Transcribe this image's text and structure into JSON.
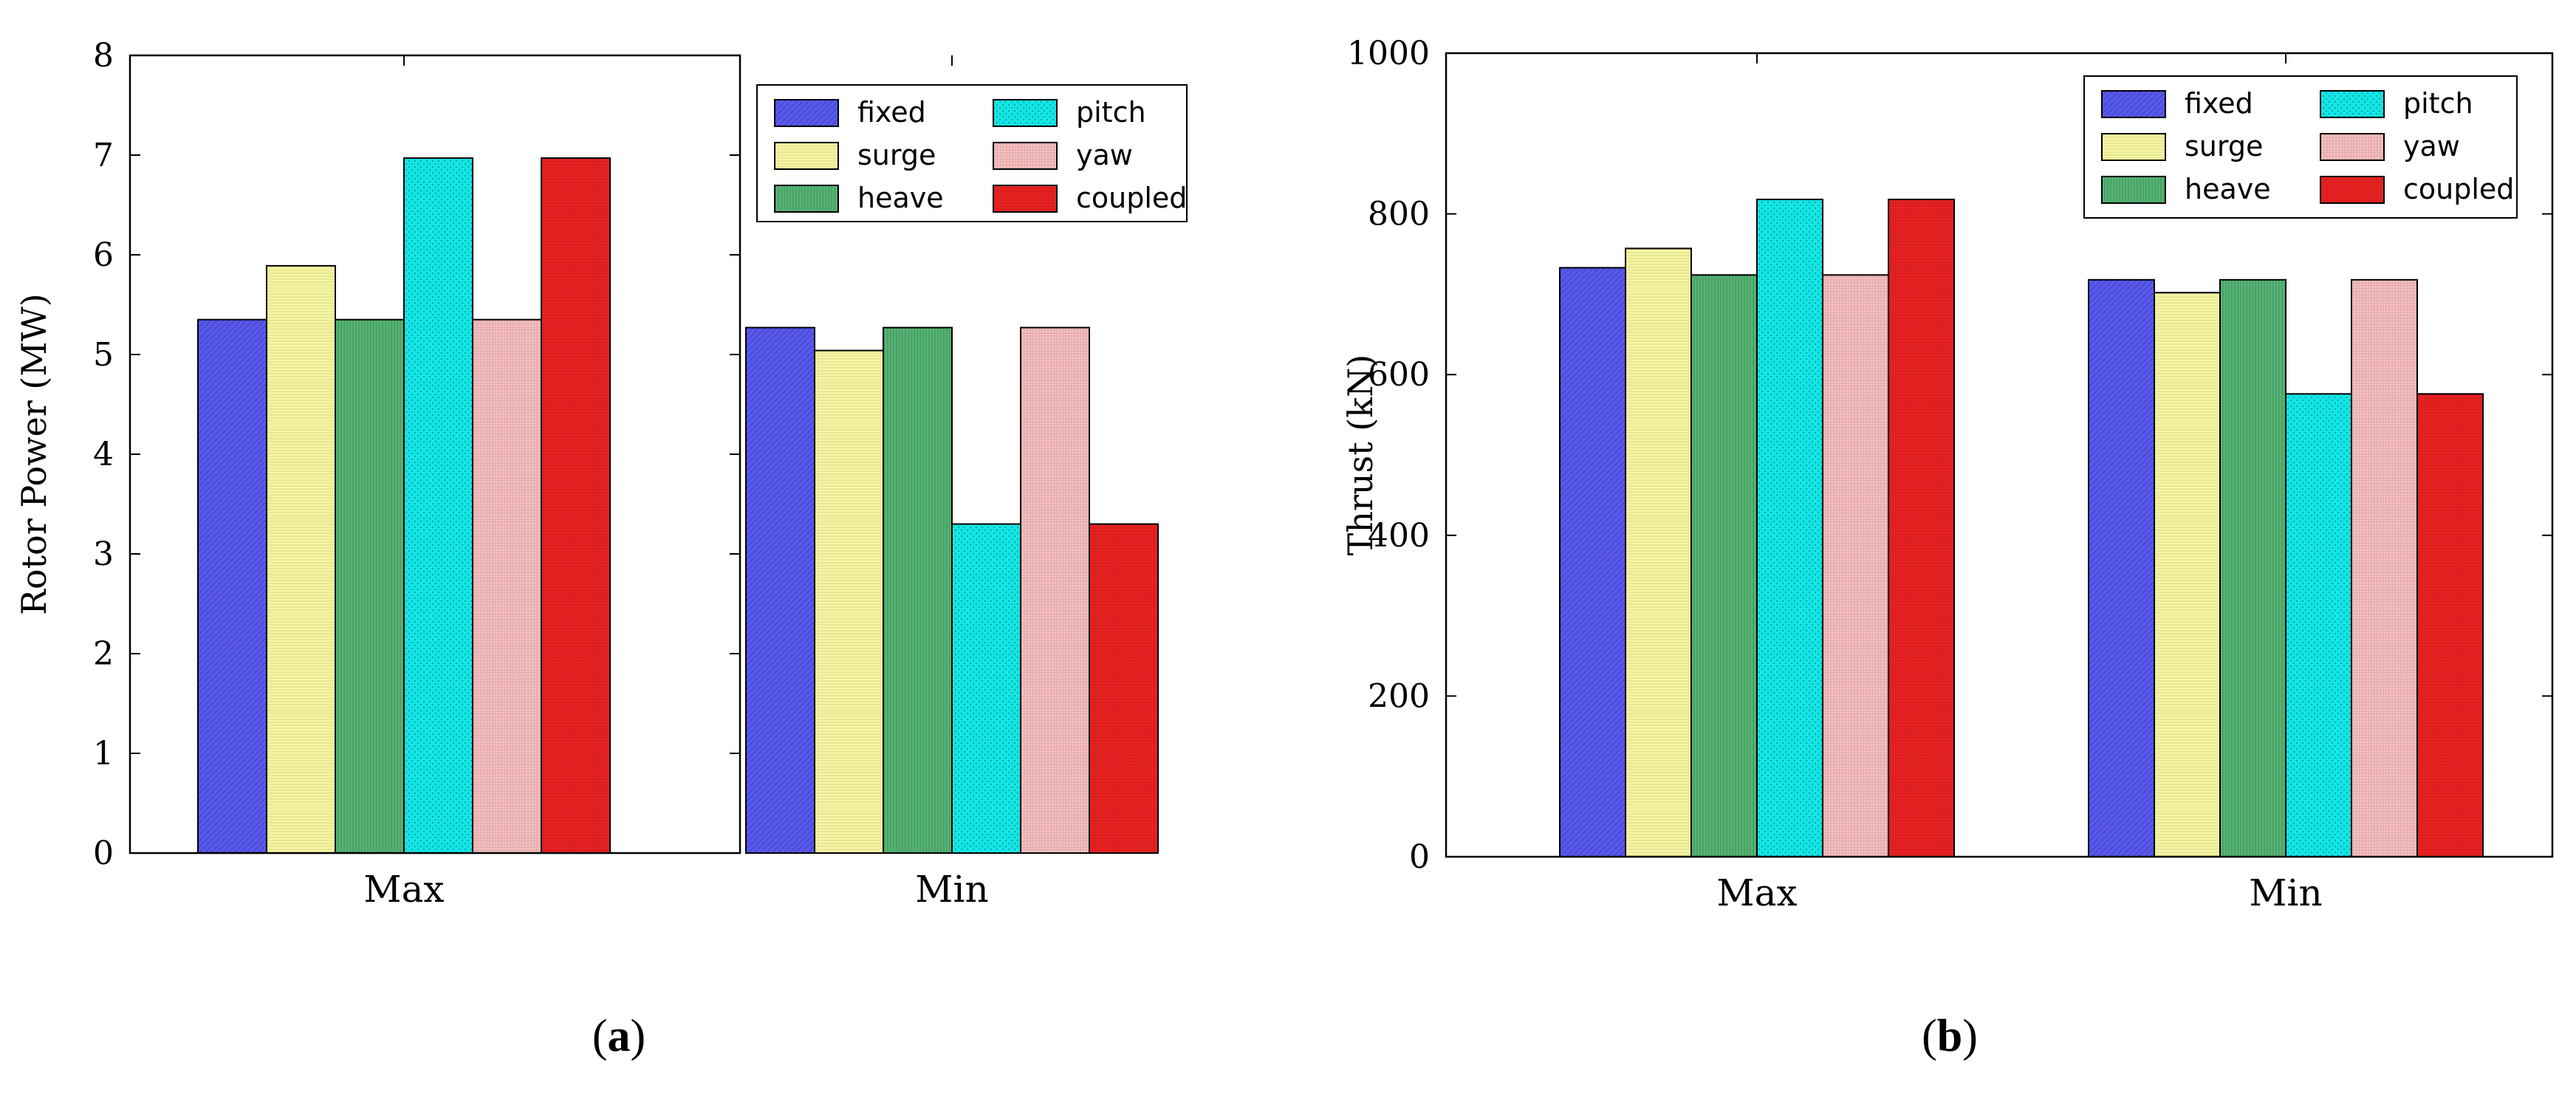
{
  "series_styles": [
    {
      "name": "fixed",
      "color": "#5858f0",
      "pattern": "diag"
    },
    {
      "name": "surge",
      "color": "#f6f6a2",
      "pattern": "hlines"
    },
    {
      "name": "heave",
      "color": "#55b474",
      "pattern": "vlines"
    },
    {
      "name": "pitch",
      "color": "#12e6e6",
      "pattern": "dots"
    },
    {
      "name": "yaw",
      "color": "#fdc2c2",
      "pattern": "grid"
    },
    {
      "name": "coupled",
      "color": "#f02222",
      "pattern": "grid"
    }
  ],
  "chart_data": [
    {
      "type": "bar",
      "panel_label": "a",
      "categories": [
        "Max",
        "Min"
      ],
      "series": [
        {
          "name": "fixed",
          "values": [
            5.35,
            5.27
          ]
        },
        {
          "name": "surge",
          "values": [
            5.89,
            5.04
          ]
        },
        {
          "name": "heave",
          "values": [
            5.35,
            5.27
          ]
        },
        {
          "name": "pitch",
          "values": [
            6.97,
            3.3
          ]
        },
        {
          "name": "yaw",
          "values": [
            5.35,
            5.27
          ]
        },
        {
          "name": "coupled",
          "values": [
            6.97,
            3.3
          ]
        }
      ],
      "title": "",
      "xlabel": "",
      "ylabel": "Rotor Power (MW)",
      "ylim": [
        0,
        8
      ],
      "yticks": [
        "0",
        "1",
        "2",
        "3",
        "4",
        "5",
        "6",
        "7",
        "8"
      ],
      "legend": "top-right",
      "grid": false
    },
    {
      "type": "bar",
      "panel_label": "b",
      "categories": [
        "Max",
        "Min"
      ],
      "series": [
        {
          "name": "fixed",
          "values": [
            733,
            718
          ]
        },
        {
          "name": "surge",
          "values": [
            757,
            702
          ]
        },
        {
          "name": "heave",
          "values": [
            724,
            718
          ]
        },
        {
          "name": "pitch",
          "values": [
            818,
            576
          ]
        },
        {
          "name": "yaw",
          "values": [
            724,
            718
          ]
        },
        {
          "name": "coupled",
          "values": [
            818,
            576
          ]
        }
      ],
      "title": "",
      "xlabel": "",
      "ylabel": "Thrust (kN)",
      "ylim": [
        0,
        1000
      ],
      "yticks": [
        "0",
        "200",
        "400",
        "600",
        "800",
        "1000"
      ],
      "legend": "top-right",
      "grid": false
    }
  ],
  "captions": {
    "a": {
      "open": "(",
      "label": "a",
      "close": ")"
    },
    "b": {
      "open": "(",
      "label": "b",
      "close": ")"
    }
  }
}
